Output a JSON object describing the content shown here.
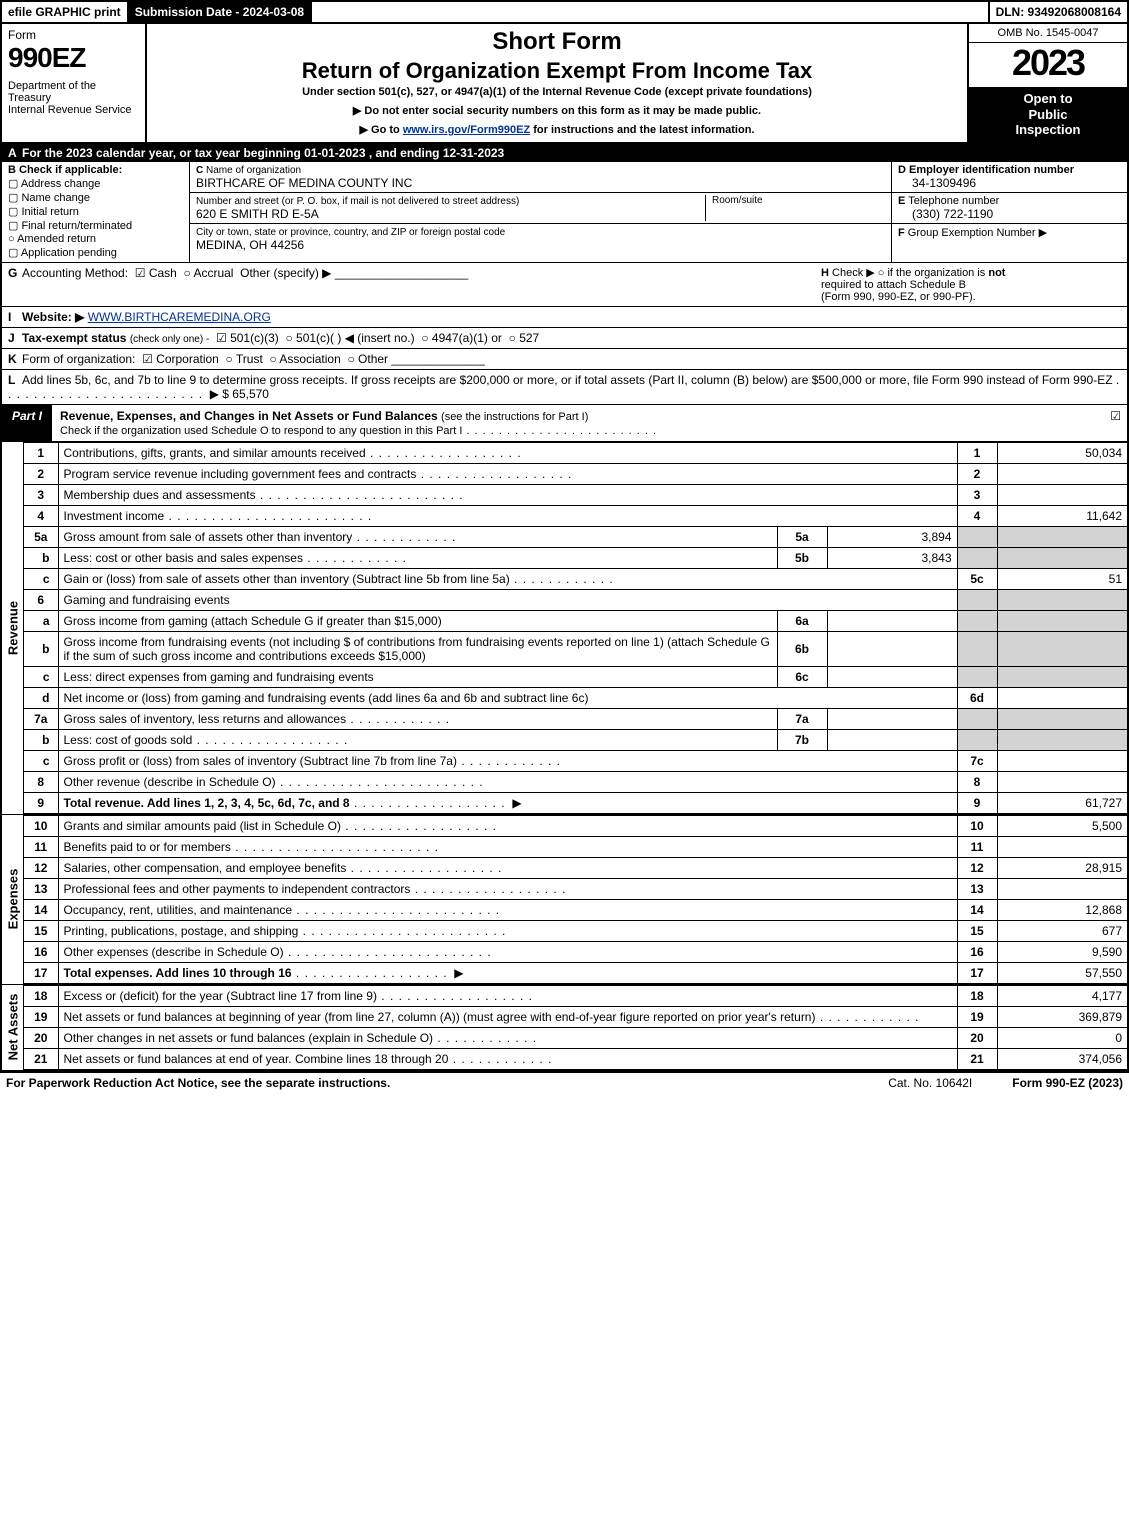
{
  "topbar": {
    "efile": "efile GRAPHIC print",
    "submission": "Submission Date - 2024-03-08",
    "dln": "DLN: 93492068008164"
  },
  "header": {
    "form_word": "Form",
    "form_num": "990EZ",
    "dept": "Department of the Treasury",
    "irs": "Internal Revenue Service",
    "short": "Short Form",
    "return": "Return of Organization Exempt From Income Tax",
    "under": "Under section 501(c), 527, or 4947(a)(1) of the Internal Revenue Code (except private foundations)",
    "arrow1": "▶ Do not enter social security numbers on this form as it may be made public.",
    "arrow2_pre": "▶ Go to ",
    "arrow2_link": "www.irs.gov/Form990EZ",
    "arrow2_post": " for instructions and the latest information.",
    "omb": "OMB No. 1545-0047",
    "year": "2023",
    "inspect1": "Open to",
    "inspect2": "Public",
    "inspect3": "Inspection"
  },
  "A": {
    "text": "For the 2023 calendar year, or tax year beginning 01-01-2023 , and ending 12-31-2023"
  },
  "B": {
    "label": "Check if applicable:",
    "items": [
      "Address change",
      "Name change",
      "Initial return",
      "Final return/terminated",
      "Amended return",
      "Application pending"
    ]
  },
  "C": {
    "name_lbl": "Name of organization",
    "name": "BIRTHCARE OF MEDINA COUNTY INC",
    "street_lbl": "Number and street (or P. O. box, if mail is not delivered to street address)",
    "room_lbl": "Room/suite",
    "street": "620 E SMITH RD E-5A",
    "city_lbl": "City or town, state or province, country, and ZIP or foreign postal code",
    "city": "MEDINA, OH  44256"
  },
  "D": {
    "label": "Employer identification number",
    "value": "34-1309496"
  },
  "E": {
    "label": "Telephone number",
    "value": "(330) 722-1190"
  },
  "F": {
    "label": "Group Exemption Number   ▶",
    "value": ""
  },
  "G": {
    "label": "Accounting Method:",
    "cash": "Cash",
    "accrual": "Accrual",
    "other": "Other (specify) ▶"
  },
  "H": {
    "text1": "Check ▶  ○  if the organization is ",
    "not": "not",
    "text2": "required to attach Schedule B",
    "text3": "(Form 990, 990-EZ, or 990-PF)."
  },
  "I": {
    "label": "Website: ▶",
    "value": "WWW.BIRTHCAREMEDINA.ORG"
  },
  "J": {
    "label": "Tax-exempt status",
    "hint": "(check only one) -",
    "opt1": "501(c)(3)",
    "opt2": "501(c)(   ) ◀ (insert no.)",
    "opt3": "4947(a)(1) or",
    "opt4": "527"
  },
  "K": {
    "label": "Form of organization:",
    "opts": [
      "Corporation",
      "Trust",
      "Association",
      "Other"
    ]
  },
  "L": {
    "text": "Add lines 5b, 6c, and 7b to line 9 to determine gross receipts. If gross receipts are $200,000 or more, or if total assets (Part II, column (B) below) are $500,000 or more, file Form 990 instead of Form 990-EZ",
    "amount": "▶ $ 65,570"
  },
  "part1": {
    "tag": "Part I",
    "title": "Revenue, Expenses, and Changes in Net Assets or Fund Balances",
    "hint": "(see the instructions for Part I)",
    "check_line": "Check if the organization used Schedule O to respond to any question in this Part I"
  },
  "revenue_label": "Revenue",
  "expenses_label": "Expenses",
  "netassets_label": "Net Assets",
  "lines": {
    "l1": {
      "n": "1",
      "d": "Contributions, gifts, grants, and similar amounts received",
      "r": "1",
      "a": "50,034"
    },
    "l2": {
      "n": "2",
      "d": "Program service revenue including government fees and contracts",
      "r": "2",
      "a": ""
    },
    "l3": {
      "n": "3",
      "d": "Membership dues and assessments",
      "r": "3",
      "a": ""
    },
    "l4": {
      "n": "4",
      "d": "Investment income",
      "r": "4",
      "a": "11,642"
    },
    "l5a": {
      "n": "5a",
      "d": "Gross amount from sale of assets other than inventory",
      "ib": "5a",
      "iv": "3,894"
    },
    "l5b": {
      "n": "b",
      "d": "Less: cost or other basis and sales expenses",
      "ib": "5b",
      "iv": "3,843"
    },
    "l5c": {
      "n": "c",
      "d": "Gain or (loss) from sale of assets other than inventory (Subtract line 5b from line 5a)",
      "r": "5c",
      "a": "51"
    },
    "l6": {
      "n": "6",
      "d": "Gaming and fundraising events"
    },
    "l6a": {
      "n": "a",
      "d": "Gross income from gaming (attach Schedule G if greater than $15,000)",
      "ib": "6a",
      "iv": ""
    },
    "l6b": {
      "n": "b",
      "d": "Gross income from fundraising events (not including $                  of contributions from fundraising events reported on line 1) (attach Schedule G if the sum of such gross income and contributions exceeds $15,000)",
      "ib": "6b",
      "iv": ""
    },
    "l6c": {
      "n": "c",
      "d": "Less: direct expenses from gaming and fundraising events",
      "ib": "6c",
      "iv": ""
    },
    "l6d": {
      "n": "d",
      "d": "Net income or (loss) from gaming and fundraising events (add lines 6a and 6b and subtract line 6c)",
      "r": "6d",
      "a": ""
    },
    "l7a": {
      "n": "7a",
      "d": "Gross sales of inventory, less returns and allowances",
      "ib": "7a",
      "iv": ""
    },
    "l7b": {
      "n": "b",
      "d": "Less: cost of goods sold",
      "ib": "7b",
      "iv": ""
    },
    "l7c": {
      "n": "c",
      "d": "Gross profit or (loss) from sales of inventory (Subtract line 7b from line 7a)",
      "r": "7c",
      "a": ""
    },
    "l8": {
      "n": "8",
      "d": "Other revenue (describe in Schedule O)",
      "r": "8",
      "a": ""
    },
    "l9": {
      "n": "9",
      "d": "Total revenue. Add lines 1, 2, 3, 4, 5c, 6d, 7c, and 8",
      "r": "9",
      "a": "61,727",
      "arrow": "▶"
    },
    "l10": {
      "n": "10",
      "d": "Grants and similar amounts paid (list in Schedule O)",
      "r": "10",
      "a": "5,500"
    },
    "l11": {
      "n": "11",
      "d": "Benefits paid to or for members",
      "r": "11",
      "a": ""
    },
    "l12": {
      "n": "12",
      "d": "Salaries, other compensation, and employee benefits",
      "r": "12",
      "a": "28,915"
    },
    "l13": {
      "n": "13",
      "d": "Professional fees and other payments to independent contractors",
      "r": "13",
      "a": ""
    },
    "l14": {
      "n": "14",
      "d": "Occupancy, rent, utilities, and maintenance",
      "r": "14",
      "a": "12,868"
    },
    "l15": {
      "n": "15",
      "d": "Printing, publications, postage, and shipping",
      "r": "15",
      "a": "677"
    },
    "l16": {
      "n": "16",
      "d": "Other expenses (describe in Schedule O)",
      "r": "16",
      "a": "9,590"
    },
    "l17": {
      "n": "17",
      "d": "Total expenses. Add lines 10 through 16",
      "r": "17",
      "a": "57,550",
      "arrow": "▶"
    },
    "l18": {
      "n": "18",
      "d": "Excess or (deficit) for the year (Subtract line 17 from line 9)",
      "r": "18",
      "a": "4,177"
    },
    "l19": {
      "n": "19",
      "d": "Net assets or fund balances at beginning of year (from line 27, column (A)) (must agree with end-of-year figure reported on prior year's return)",
      "r": "19",
      "a": "369,879"
    },
    "l20": {
      "n": "20",
      "d": "Other changes in net assets or fund balances (explain in Schedule O)",
      "r": "20",
      "a": "0"
    },
    "l21": {
      "n": "21",
      "d": "Net assets or fund balances at end of year. Combine lines 18 through 20",
      "r": "21",
      "a": "374,056"
    }
  },
  "footer": {
    "pra": "For Paperwork Reduction Act Notice, see the separate instructions.",
    "cat": "Cat. No. 10642I",
    "form": "Form 990-EZ (2023)",
    "form_bold": "990-EZ"
  },
  "colors": {
    "black": "#000000",
    "white": "#ffffff",
    "shade": "#d3d3d3",
    "link": "#003399"
  }
}
